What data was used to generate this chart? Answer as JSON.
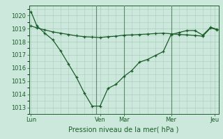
{
  "background_color": "#cce8dc",
  "grid_color": "#aaccbb",
  "line_color": "#1a5c28",
  "xlabel": "Pression niveau de la mer( hPa )",
  "ylim": [
    1012.5,
    1020.75
  ],
  "yticks": [
    1013,
    1014,
    1015,
    1016,
    1017,
    1018,
    1019,
    1020
  ],
  "xlim": [
    0,
    48
  ],
  "day_positions": [
    0.5,
    18,
    24,
    36,
    47
  ],
  "day_labels": [
    "Lun",
    "Ven",
    "Mar",
    "Mer",
    "Jeu"
  ],
  "vline_positions": [
    17,
    24,
    36
  ],
  "series1_x": [
    0.5,
    2,
    4,
    6,
    8,
    10,
    12,
    14,
    16,
    18,
    20,
    22,
    24,
    26,
    28,
    30,
    32,
    34,
    36,
    38,
    40,
    42,
    44,
    46,
    47.5
  ],
  "series1_y": [
    1020.3,
    1019.2,
    1018.65,
    1018.15,
    1017.3,
    1016.3,
    1015.3,
    1014.1,
    1013.1,
    1013.1,
    1014.45,
    1014.75,
    1015.35,
    1015.8,
    1016.45,
    1016.65,
    1016.95,
    1017.25,
    1018.55,
    1018.7,
    1018.85,
    1018.85,
    1018.5,
    1019.1,
    1018.95
  ],
  "series2_x": [
    0.5,
    2,
    4,
    6,
    8,
    10,
    12,
    14,
    16,
    18,
    20,
    22,
    24,
    26,
    28,
    30,
    32,
    34,
    36,
    38,
    40,
    42,
    44,
    46,
    47.5
  ],
  "series2_y": [
    1019.2,
    1019.05,
    1018.9,
    1018.75,
    1018.65,
    1018.55,
    1018.45,
    1018.38,
    1018.35,
    1018.32,
    1018.38,
    1018.42,
    1018.5,
    1018.52,
    1018.55,
    1018.58,
    1018.62,
    1018.65,
    1018.6,
    1018.55,
    1018.52,
    1018.48,
    1018.42,
    1019.05,
    1018.92
  ]
}
